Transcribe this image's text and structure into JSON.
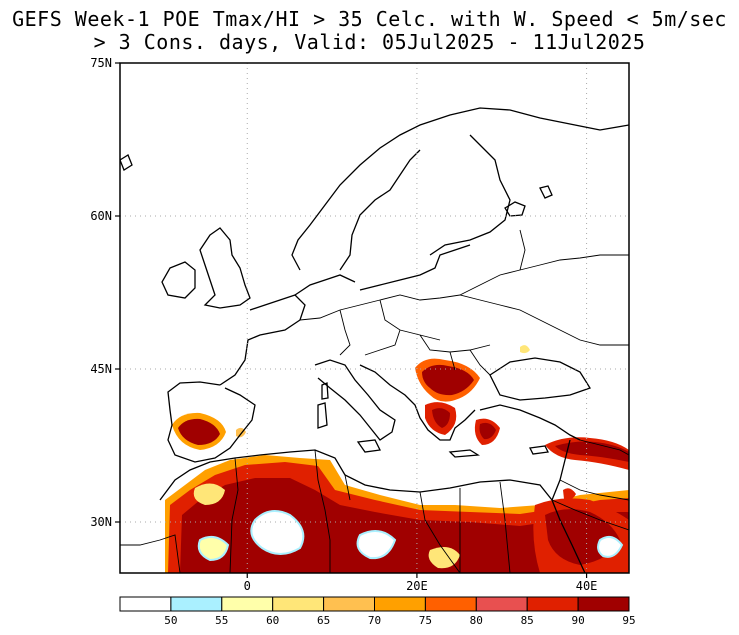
{
  "title": {
    "line1": "GEFS Week-1 POE Tmax/HI > 35 Celc. with W. Speed < 5m/sec",
    "line2": "> 3 Cons. days, Valid: 05Jul2025 - 11Jul2025"
  },
  "map": {
    "region": "Europe / Mediterranean / North Africa",
    "projection": "latitude-longitude",
    "lon_range": [
      -15,
      45
    ],
    "lat_range": [
      25,
      75
    ],
    "lat_ticks": [
      {
        "value": 75,
        "label": "75N"
      },
      {
        "value": 60,
        "label": "60N"
      },
      {
        "value": 45,
        "label": "45N"
      },
      {
        "value": 30,
        "label": "30N"
      }
    ],
    "lon_ticks": [
      {
        "value": 0,
        "label": "0"
      },
      {
        "value": 20,
        "label": "20E"
      },
      {
        "value": 40,
        "label": "40E"
      }
    ],
    "grid": "dotted",
    "field": "probability of exceedance (%)",
    "high_probability_areas": [
      "Iberian Peninsula (central/south Spain)",
      "Balkans (Serbia, Romania, Bulgaria, North Macedonia, Greece)",
      "Western Turkey",
      "Southern Turkey / Syria / Iraq",
      "North Africa (Morocco, Algeria, Tunisia, Libya)",
      "Egypt and Middle East"
    ]
  },
  "colorbar": {
    "labels": [
      "50",
      "55",
      "60",
      "65",
      "70",
      "75",
      "80",
      "85",
      "90",
      "95"
    ],
    "colors": [
      "#ffffff",
      "#aaf0ff",
      "#ffffaa",
      "#ffe678",
      "#ffc050",
      "#ffa000",
      "#ff6000",
      "#e85050",
      "#e02000",
      "#a00000"
    ]
  }
}
